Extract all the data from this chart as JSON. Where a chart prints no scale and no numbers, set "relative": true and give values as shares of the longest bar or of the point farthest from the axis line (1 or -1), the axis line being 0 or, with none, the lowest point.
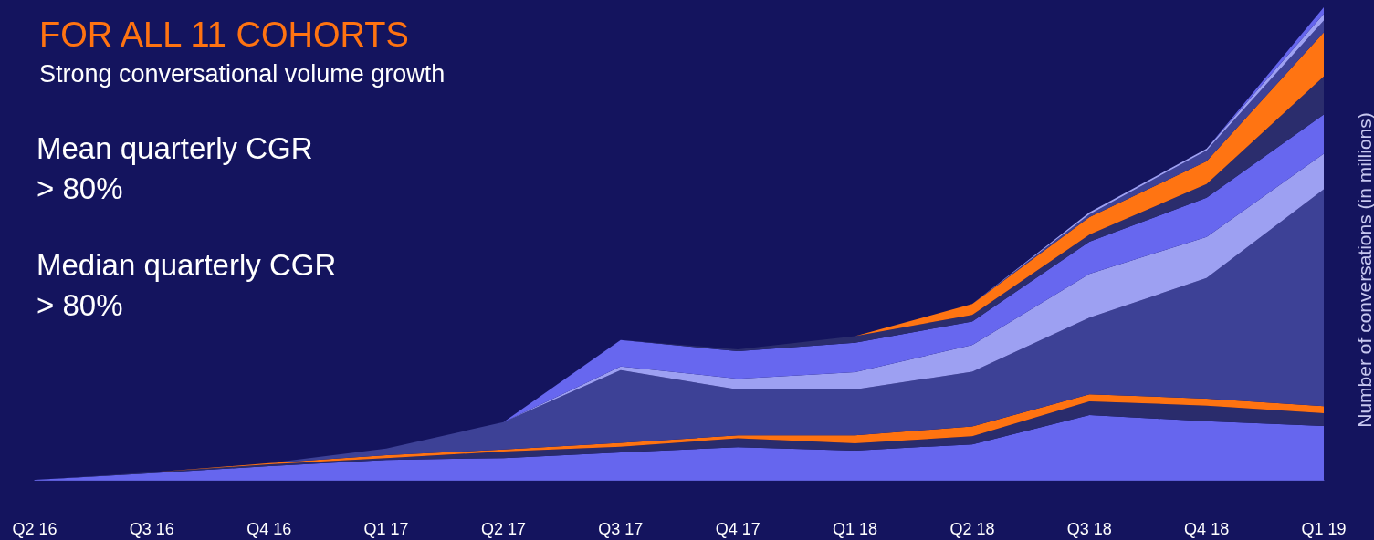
{
  "chart_data": {
    "type": "area",
    "title": "FOR ALL 11 COHORTS",
    "subtitle": "Strong conversational volume growth",
    "ylabel": "Number of conversations (in millions)",
    "annotations": [
      "Mean quarterly CGR\n> 80%",
      "Median quarterly CGR\n> 80%"
    ],
    "categories": [
      "Q2 16",
      "Q3 16",
      "Q4 16",
      "Q1 17",
      "Q2 17",
      "Q3 17",
      "Q4 17",
      "Q1 18",
      "Q2 18",
      "Q3 18",
      "Q4 18",
      "Q1 19"
    ],
    "relative": true,
    "stacked": true,
    "grid": false,
    "marker": "none",
    "series": [
      {
        "color": "#6666ee",
        "values": [
          0,
          0.014,
          0.029,
          0.042,
          0.046,
          0.058,
          0.069,
          0.062,
          0.075,
          0.137,
          0.124,
          0.114
        ]
      },
      {
        "color": "#2a2c6c",
        "values": [
          0,
          0.002,
          0.004,
          0.004,
          0.014,
          0.012,
          0.019,
          0.015,
          0.017,
          0.029,
          0.033,
          0.027
        ]
      },
      {
        "color": "#ff7311",
        "values": [
          0,
          0,
          0.002,
          0.006,
          0.004,
          0.008,
          0.006,
          0.017,
          0.021,
          0.015,
          0.015,
          0.015
        ]
      },
      {
        "color": "#3d4196",
        "values": [
          0,
          0,
          0,
          0.014,
          0.058,
          0.154,
          0.097,
          0.097,
          0.116,
          0.162,
          0.255,
          0.459
        ]
      },
      {
        "color": "#9da0f2",
        "values": [
          0,
          0,
          0,
          0,
          0,
          0.008,
          0.023,
          0.037,
          0.056,
          0.093,
          0.087,
          0.075
        ]
      },
      {
        "color": "#6767ef",
        "values": [
          0,
          0,
          0,
          0,
          0,
          0.056,
          0.058,
          0.062,
          0.05,
          0.068,
          0.083,
          0.083
        ]
      },
      {
        "color": "#2b2d6d",
        "values": [
          0,
          0,
          0,
          0,
          0,
          0,
          0.004,
          0.014,
          0.014,
          0.015,
          0.029,
          0.081
        ]
      },
      {
        "color": "#ff7412",
        "values": [
          0,
          0,
          0,
          0,
          0,
          0,
          0,
          0,
          0.023,
          0.037,
          0.048,
          0.093
        ]
      },
      {
        "color": "#3e4297",
        "values": [
          0,
          0,
          0,
          0,
          0,
          0,
          0,
          0,
          0,
          0.006,
          0.023,
          0.025
        ]
      },
      {
        "color": "#9ea1f3",
        "values": [
          0,
          0,
          0,
          0,
          0,
          0,
          0,
          0,
          0,
          0.004,
          0.004,
          0.014
        ]
      },
      {
        "color": "#6565ed",
        "values": [
          0,
          0,
          0,
          0,
          0,
          0,
          0,
          0,
          0,
          0,
          0,
          0.014
        ]
      }
    ]
  }
}
